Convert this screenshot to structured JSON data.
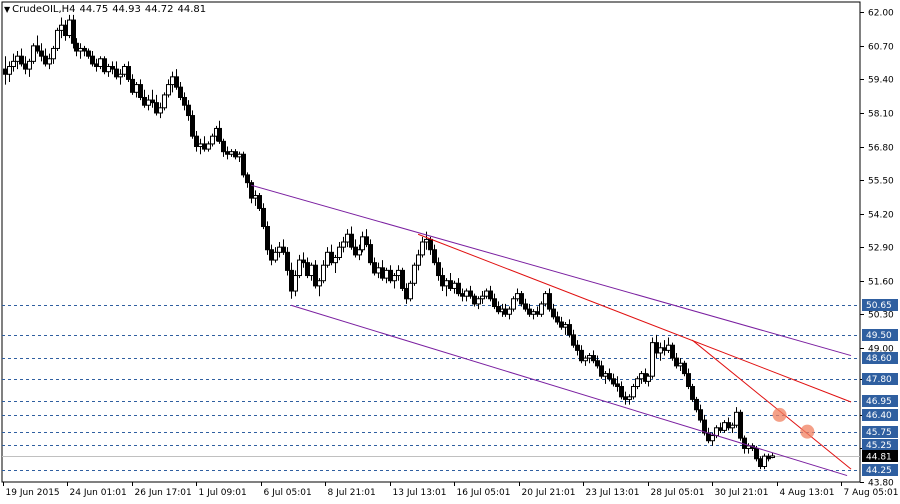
{
  "header": {
    "symbol": "CrudeOIL,H4",
    "open": "44.75",
    "high": "44.93",
    "low": "44.72",
    "close": "44.81"
  },
  "chart_data": {
    "type": "candlestick",
    "symbol": "CrudeOIL",
    "timeframe": "H4",
    "ylim": [
      43.8,
      62.4
    ],
    "y_ticks": [
      43.8,
      45.1,
      46.4,
      47.8,
      49.0,
      50.3,
      51.6,
      52.9,
      54.2,
      55.5,
      56.8,
      58.1,
      59.4,
      60.7,
      62.0
    ],
    "y_tick_labels": [
      "43.80",
      "45.10",
      "46.40",
      "47.80",
      "49.00",
      "50.30",
      "51.60",
      "52.90",
      "54.20",
      "55.50",
      "56.80",
      "58.10",
      "59.40",
      "60.70",
      "62.00"
    ],
    "x_tick_labels": [
      "19 Jun 2015",
      "24 Jun 01:01",
      "26 Jun 17:01",
      "1 Jul 09:01",
      "6 Jul 05:01",
      "8 Jul 21:01",
      "13 Jul 13:01",
      "16 Jul 05:01",
      "20 Jul 21:01",
      "23 Jul 13:01",
      "28 Jul 05:01",
      "30 Jul 21:01",
      "4 Aug 13:01",
      "7 Aug 05:01"
    ],
    "current_price": 44.81,
    "current_price_label": "44.81",
    "level_colors": {
      "horizontal": "#2f5fa0",
      "channel": "#7a1fa0",
      "trendline": "#e01010",
      "marker": "#f08060"
    },
    "horizontal_levels": [
      {
        "value": 50.65,
        "label": "50.65"
      },
      {
        "value": 49.5,
        "label": "49.50"
      },
      {
        "value": 48.6,
        "label": "48.60"
      },
      {
        "value": 47.8,
        "label": "47.80"
      },
      {
        "value": 46.95,
        "label": "46.95"
      },
      {
        "value": 46.4,
        "label": "46.40"
      },
      {
        "value": 45.75,
        "label": "45.75"
      },
      {
        "value": 45.25,
        "label": "45.25"
      },
      {
        "value": 44.25,
        "label": "44.25"
      }
    ],
    "trend_lines": [
      {
        "kind": "channel-upper",
        "from": {
          "bar": 62,
          "price": 55.3
        },
        "to": {
          "bar": 213,
          "price": 48.7
        }
      },
      {
        "kind": "channel-lower",
        "from": {
          "bar": 72,
          "price": 50.65
        },
        "to": {
          "bar": 212,
          "price": 44.05
        }
      },
      {
        "kind": "resistance",
        "from": {
          "bar": 104,
          "price": 53.4
        },
        "to": {
          "bar": 213,
          "price": 46.9
        }
      },
      {
        "kind": "resistance",
        "from": {
          "bar": 173,
          "price": 49.3
        },
        "to": {
          "bar": 213,
          "price": 44.3
        }
      }
    ],
    "markers": [
      {
        "bar": 195,
        "price": 46.4
      },
      {
        "bar": 202,
        "price": 45.75
      }
    ],
    "candles": [
      [
        59.8,
        60.3,
        59.2,
        59.6
      ],
      [
        59.6,
        60.1,
        59.3,
        59.9
      ],
      [
        59.9,
        60.4,
        59.7,
        60.1
      ],
      [
        60.1,
        60.5,
        59.8,
        60.3
      ],
      [
        60.3,
        60.6,
        59.9,
        60.0
      ],
      [
        60.0,
        60.3,
        59.6,
        59.8
      ],
      [
        59.8,
        60.2,
        59.5,
        60.1
      ],
      [
        60.1,
        60.8,
        60.0,
        60.7
      ],
      [
        60.7,
        61.1,
        60.4,
        60.5
      ],
      [
        60.5,
        60.8,
        60.1,
        60.3
      ],
      [
        60.3,
        60.6,
        59.9,
        60.0
      ],
      [
        60.0,
        60.4,
        59.8,
        60.2
      ],
      [
        60.2,
        60.7,
        60.0,
        60.6
      ],
      [
        60.6,
        61.4,
        60.5,
        61.3
      ],
      [
        61.3,
        61.8,
        61.0,
        61.5
      ],
      [
        61.5,
        61.7,
        60.9,
        61.1
      ],
      [
        61.1,
        61.9,
        61.0,
        61.7
      ],
      [
        61.7,
        61.9,
        60.6,
        60.8
      ],
      [
        60.8,
        61.0,
        60.3,
        60.5
      ],
      [
        60.5,
        60.8,
        60.2,
        60.6
      ],
      [
        60.6,
        60.7,
        60.3,
        60.5
      ],
      [
        60.5,
        60.6,
        60.2,
        60.3
      ],
      [
        60.3,
        60.5,
        59.9,
        60.0
      ],
      [
        60.0,
        60.2,
        59.7,
        59.9
      ],
      [
        59.9,
        60.3,
        59.8,
        60.2
      ],
      [
        60.2,
        60.3,
        59.6,
        59.7
      ],
      [
        59.7,
        60.0,
        59.5,
        59.9
      ],
      [
        59.9,
        60.1,
        59.6,
        59.8
      ],
      [
        59.8,
        60.1,
        59.4,
        59.5
      ],
      [
        59.5,
        59.8,
        59.2,
        59.6
      ],
      [
        59.6,
        60.0,
        59.5,
        59.9
      ],
      [
        59.9,
        60.1,
        59.3,
        59.4
      ],
      [
        59.4,
        59.6,
        58.8,
        58.9
      ],
      [
        58.9,
        59.3,
        58.7,
        59.2
      ],
      [
        59.2,
        59.4,
        58.6,
        58.7
      ],
      [
        58.7,
        59.0,
        58.3,
        58.4
      ],
      [
        58.4,
        58.8,
        58.2,
        58.6
      ],
      [
        58.6,
        59.0,
        58.3,
        58.5
      ],
      [
        58.5,
        58.8,
        58.0,
        58.1
      ],
      [
        58.1,
        58.5,
        57.9,
        58.3
      ],
      [
        58.3,
        58.9,
        58.2,
        58.8
      ],
      [
        58.8,
        59.4,
        58.7,
        59.2
      ],
      [
        59.2,
        59.7,
        58.9,
        59.5
      ],
      [
        59.5,
        59.8,
        59.0,
        59.1
      ],
      [
        59.1,
        59.3,
        58.6,
        58.7
      ],
      [
        58.7,
        58.9,
        58.2,
        58.4
      ],
      [
        58.4,
        58.6,
        57.8,
        58.0
      ],
      [
        58.0,
        58.2,
        57.1,
        57.2
      ],
      [
        57.2,
        57.4,
        56.6,
        56.8
      ],
      [
        56.8,
        57.1,
        56.5,
        56.9
      ],
      [
        56.9,
        57.2,
        56.6,
        56.7
      ],
      [
        56.7,
        57.0,
        56.6,
        56.9
      ],
      [
        56.9,
        57.3,
        56.8,
        57.2
      ],
      [
        57.2,
        57.6,
        57.0,
        57.5
      ],
      [
        57.5,
        57.8,
        56.9,
        57.0
      ],
      [
        57.0,
        57.1,
        56.4,
        56.6
      ],
      [
        56.6,
        56.8,
        56.3,
        56.5
      ],
      [
        56.5,
        56.7,
        56.4,
        56.6
      ],
      [
        56.6,
        56.7,
        56.3,
        56.4
      ],
      [
        56.4,
        56.6,
        56.2,
        56.5
      ],
      [
        56.5,
        56.6,
        55.6,
        55.7
      ],
      [
        55.7,
        55.8,
        55.2,
        55.4
      ],
      [
        55.4,
        55.5,
        54.6,
        54.8
      ],
      [
        54.8,
        55.1,
        54.5,
        54.9
      ],
      [
        54.9,
        55.0,
        54.3,
        54.4
      ],
      [
        54.4,
        54.6,
        53.6,
        53.7
      ],
      [
        53.7,
        53.9,
        52.6,
        52.8
      ],
      [
        52.8,
        53.0,
        52.2,
        52.4
      ],
      [
        52.4,
        52.9,
        52.3,
        52.7
      ],
      [
        52.7,
        53.1,
        52.5,
        52.9
      ],
      [
        52.9,
        53.2,
        52.6,
        52.7
      ],
      [
        52.7,
        52.9,
        51.8,
        52.0
      ],
      [
        52.0,
        52.3,
        50.9,
        51.2
      ],
      [
        51.2,
        52.0,
        51.0,
        51.8
      ],
      [
        51.8,
        52.6,
        51.7,
        52.4
      ],
      [
        52.4,
        52.7,
        52.1,
        52.3
      ],
      [
        52.3,
        52.5,
        51.7,
        51.8
      ],
      [
        51.8,
        52.3,
        51.6,
        52.2
      ],
      [
        52.2,
        52.4,
        51.3,
        51.4
      ],
      [
        51.4,
        51.7,
        51.0,
        51.6
      ],
      [
        51.6,
        52.4,
        51.5,
        52.2
      ],
      [
        52.2,
        52.9,
        52.1,
        52.7
      ],
      [
        52.7,
        53.0,
        52.2,
        52.3
      ],
      [
        52.3,
        52.6,
        51.9,
        52.5
      ],
      [
        52.5,
        53.1,
        52.4,
        52.9
      ],
      [
        52.9,
        53.3,
        52.7,
        53.1
      ],
      [
        53.1,
        53.6,
        52.9,
        53.4
      ],
      [
        53.4,
        53.7,
        52.8,
        52.9
      ],
      [
        52.9,
        53.2,
        52.5,
        52.6
      ],
      [
        52.6,
        53.0,
        52.4,
        52.8
      ],
      [
        52.8,
        53.5,
        52.7,
        53.3
      ],
      [
        53.3,
        53.6,
        52.9,
        53.0
      ],
      [
        53.0,
        53.2,
        52.2,
        52.3
      ],
      [
        52.3,
        52.5,
        51.8,
        51.9
      ],
      [
        51.9,
        52.3,
        51.7,
        52.1
      ],
      [
        52.1,
        52.4,
        51.6,
        51.7
      ],
      [
        51.7,
        52.1,
        51.5,
        52.0
      ],
      [
        52.0,
        52.2,
        51.5,
        51.6
      ],
      [
        51.6,
        51.9,
        51.3,
        51.8
      ],
      [
        51.8,
        52.2,
        51.6,
        52.0
      ],
      [
        52.0,
        52.1,
        51.2,
        51.3
      ],
      [
        51.3,
        51.5,
        50.7,
        50.9
      ],
      [
        50.9,
        51.6,
        50.8,
        51.5
      ],
      [
        51.5,
        52.3,
        51.4,
        52.2
      ],
      [
        52.2,
        52.8,
        52.0,
        52.6
      ],
      [
        52.6,
        53.3,
        52.5,
        53.1
      ],
      [
        53.1,
        53.5,
        52.8,
        53.2
      ],
      [
        53.2,
        53.3,
        52.6,
        52.8
      ],
      [
        52.8,
        53.0,
        52.2,
        52.3
      ],
      [
        52.3,
        52.5,
        51.6,
        51.8
      ],
      [
        51.8,
        52.1,
        51.2,
        51.4
      ],
      [
        51.4,
        51.7,
        51.0,
        51.6
      ],
      [
        51.6,
        51.9,
        51.2,
        51.3
      ],
      [
        51.3,
        51.6,
        51.1,
        51.5
      ],
      [
        51.5,
        51.7,
        51.0,
        51.1
      ],
      [
        51.1,
        51.3,
        50.8,
        51.0
      ],
      [
        51.0,
        51.3,
        50.8,
        51.2
      ],
      [
        51.2,
        51.4,
        50.9,
        51.0
      ],
      [
        51.0,
        51.1,
        50.6,
        50.7
      ],
      [
        50.7,
        51.0,
        50.5,
        50.9
      ],
      [
        50.9,
        51.2,
        50.7,
        51.0
      ],
      [
        51.0,
        51.3,
        50.9,
        51.2
      ],
      [
        51.2,
        51.4,
        50.8,
        50.9
      ],
      [
        50.9,
        51.1,
        50.5,
        50.6
      ],
      [
        50.6,
        50.8,
        50.3,
        50.4
      ],
      [
        50.4,
        50.7,
        50.2,
        50.5
      ],
      [
        50.5,
        50.7,
        50.2,
        50.3
      ],
      [
        50.3,
        50.6,
        50.1,
        50.5
      ],
      [
        50.5,
        51.0,
        50.4,
        50.9
      ],
      [
        50.9,
        51.3,
        50.8,
        51.1
      ],
      [
        51.1,
        51.2,
        50.6,
        50.7
      ],
      [
        50.7,
        50.9,
        50.4,
        50.5
      ],
      [
        50.5,
        50.7,
        50.2,
        50.3
      ],
      [
        50.3,
        50.5,
        50.1,
        50.4
      ],
      [
        50.4,
        50.6,
        50.2,
        50.3
      ],
      [
        50.3,
        50.8,
        50.2,
        50.7
      ],
      [
        50.7,
        51.2,
        50.6,
        51.1
      ],
      [
        51.1,
        51.3,
        50.4,
        50.5
      ],
      [
        50.5,
        50.7,
        50.1,
        50.2
      ],
      [
        50.2,
        50.4,
        49.9,
        50.0
      ],
      [
        50.0,
        50.2,
        49.7,
        49.8
      ],
      [
        49.8,
        50.0,
        49.5,
        49.9
      ],
      [
        49.9,
        50.1,
        49.4,
        49.5
      ],
      [
        49.5,
        49.7,
        49.0,
        49.1
      ],
      [
        49.1,
        49.3,
        48.7,
        48.9
      ],
      [
        48.9,
        49.1,
        48.4,
        48.5
      ],
      [
        48.5,
        48.7,
        48.3,
        48.6
      ],
      [
        48.6,
        48.8,
        48.4,
        48.7
      ],
      [
        48.7,
        48.9,
        48.4,
        48.5
      ],
      [
        48.5,
        48.7,
        48.2,
        48.3
      ],
      [
        48.3,
        48.5,
        47.8,
        47.9
      ],
      [
        47.9,
        48.1,
        47.6,
        48.0
      ],
      [
        48.0,
        48.2,
        47.7,
        47.8
      ],
      [
        47.8,
        48.0,
        47.5,
        47.6
      ],
      [
        47.6,
        47.9,
        47.3,
        47.5
      ],
      [
        47.5,
        47.7,
        47.0,
        47.1
      ],
      [
        47.1,
        47.3,
        46.8,
        47.0
      ],
      [
        47.0,
        47.2,
        46.8,
        47.1
      ],
      [
        47.1,
        47.6,
        47.0,
        47.5
      ],
      [
        47.5,
        47.9,
        47.4,
        47.8
      ],
      [
        47.8,
        48.1,
        47.6,
        48.0
      ],
      [
        48.0,
        48.2,
        47.6,
        47.7
      ],
      [
        47.7,
        48.0,
        47.5,
        47.9
      ],
      [
        47.9,
        49.4,
        47.8,
        49.2
      ],
      [
        49.2,
        49.5,
        48.6,
        48.8
      ],
      [
        48.8,
        49.2,
        48.5,
        49.0
      ],
      [
        49.0,
        49.3,
        48.7,
        48.9
      ],
      [
        48.9,
        49.4,
        48.8,
        49.1
      ],
      [
        49.1,
        49.2,
        48.5,
        48.6
      ],
      [
        48.6,
        48.8,
        48.2,
        48.3
      ],
      [
        48.3,
        48.6,
        48.1,
        48.4
      ],
      [
        48.4,
        48.5,
        47.9,
        48.0
      ],
      [
        48.0,
        48.2,
        47.4,
        47.5
      ],
      [
        47.5,
        47.6,
        46.9,
        47.0
      ],
      [
        47.0,
        47.1,
        46.5,
        46.6
      ],
      [
        46.6,
        46.8,
        46.1,
        46.2
      ],
      [
        46.2,
        46.4,
        45.6,
        45.7
      ],
      [
        45.7,
        45.9,
        45.3,
        45.4
      ],
      [
        45.4,
        45.7,
        45.2,
        45.6
      ],
      [
        45.6,
        46.0,
        45.5,
        45.9
      ],
      [
        45.9,
        46.1,
        45.7,
        45.8
      ],
      [
        45.8,
        46.2,
        45.7,
        46.1
      ],
      [
        46.1,
        46.3,
        45.8,
        45.9
      ],
      [
        45.9,
        46.1,
        45.7,
        46.0
      ],
      [
        46.0,
        46.7,
        45.9,
        46.5
      ],
      [
        46.5,
        46.6,
        45.4,
        45.5
      ],
      [
        45.5,
        45.6,
        44.9,
        45.1
      ],
      [
        45.1,
        45.3,
        44.9,
        45.2
      ],
      [
        45.2,
        45.3,
        45.0,
        45.1
      ],
      [
        45.1,
        45.2,
        44.6,
        44.7
      ],
      [
        44.7,
        44.8,
        44.3,
        44.4
      ],
      [
        44.4,
        44.9,
        44.3,
        44.8
      ],
      [
        44.8,
        44.9,
        44.6,
        44.7
      ],
      [
        44.75,
        44.93,
        44.72,
        44.81
      ]
    ]
  }
}
